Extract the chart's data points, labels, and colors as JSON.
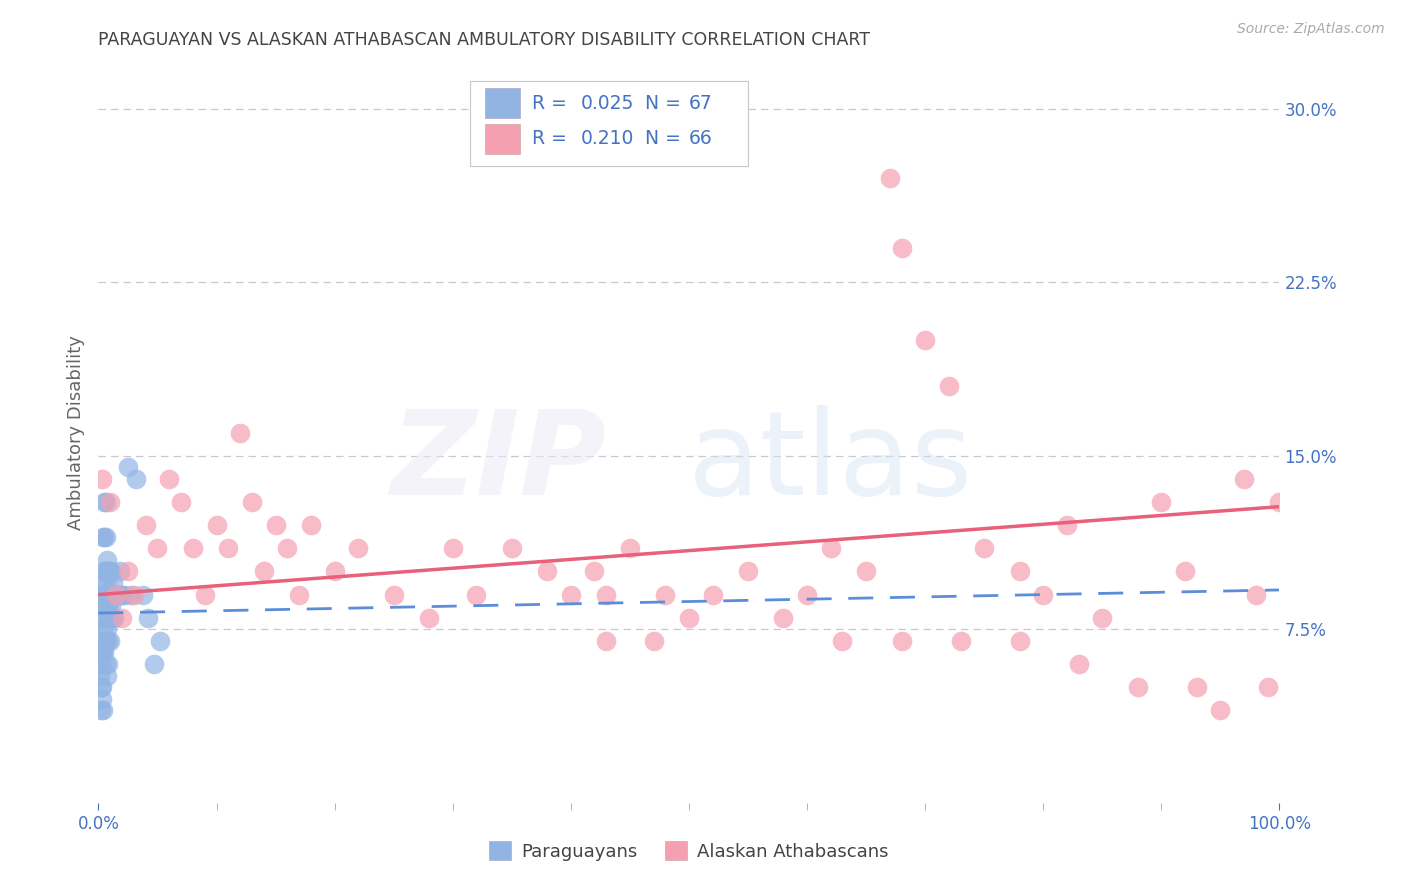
{
  "title": "PARAGUAYAN VS ALASKAN ATHABASCAN AMBULATORY DISABILITY CORRELATION CHART",
  "source": "Source: ZipAtlas.com",
  "ylabel": "Ambulatory Disability",
  "xlim": [
    0.0,
    1.0
  ],
  "ylim": [
    0.0,
    0.32
  ],
  "paraguayan_color": "#92b4e3",
  "alaskan_color": "#f4a0b0",
  "paraguayan_line_color": "#5b8dd9",
  "alaskan_line_color": "#e8607a",
  "paraguayan_label": "Paraguayans",
  "alaskan_label": "Alaskan Athabascans",
  "title_color": "#444444",
  "tick_color": "#4472c4",
  "grid_color": "#c8c8d0",
  "background_color": "#ffffff",
  "r1": "0.025",
  "n1": "67",
  "r2": "0.210",
  "n2": "66",
  "blue_trend_y0": 0.082,
  "blue_trend_y1": 0.092,
  "pink_trend_y0": 0.09,
  "pink_trend_y1": 0.128,
  "paraguayan_x": [
    0.001,
    0.001,
    0.002,
    0.002,
    0.002,
    0.003,
    0.003,
    0.003,
    0.003,
    0.004,
    0.004,
    0.004,
    0.004,
    0.004,
    0.005,
    0.005,
    0.005,
    0.005,
    0.005,
    0.005,
    0.006,
    0.006,
    0.006,
    0.006,
    0.006,
    0.007,
    0.007,
    0.007,
    0.007,
    0.008,
    0.008,
    0.008,
    0.008,
    0.009,
    0.009,
    0.009,
    0.01,
    0.01,
    0.01,
    0.01,
    0.011,
    0.011,
    0.012,
    0.012,
    0.013,
    0.013,
    0.014,
    0.015,
    0.016,
    0.017,
    0.018,
    0.019,
    0.02,
    0.022,
    0.025,
    0.028,
    0.032,
    0.038,
    0.042,
    0.047,
    0.052,
    0.005,
    0.006,
    0.007,
    0.003,
    0.004,
    0.008
  ],
  "paraguayan_y": [
    0.065,
    0.055,
    0.06,
    0.05,
    0.04,
    0.09,
    0.08,
    0.065,
    0.05,
    0.115,
    0.095,
    0.085,
    0.075,
    0.065,
    0.13,
    0.115,
    0.1,
    0.09,
    0.08,
    0.07,
    0.13,
    0.115,
    0.1,
    0.09,
    0.07,
    0.105,
    0.095,
    0.085,
    0.075,
    0.1,
    0.09,
    0.085,
    0.07,
    0.1,
    0.09,
    0.08,
    0.1,
    0.09,
    0.08,
    0.07,
    0.1,
    0.085,
    0.095,
    0.08,
    0.09,
    0.08,
    0.09,
    0.09,
    0.09,
    0.09,
    0.1,
    0.09,
    0.09,
    0.09,
    0.145,
    0.09,
    0.14,
    0.09,
    0.08,
    0.06,
    0.07,
    0.065,
    0.06,
    0.055,
    0.045,
    0.04,
    0.06
  ],
  "alaskan_x": [
    0.003,
    0.01,
    0.015,
    0.02,
    0.025,
    0.03,
    0.04,
    0.05,
    0.06,
    0.07,
    0.08,
    0.09,
    0.1,
    0.11,
    0.12,
    0.13,
    0.14,
    0.15,
    0.16,
    0.17,
    0.18,
    0.2,
    0.22,
    0.25,
    0.28,
    0.3,
    0.32,
    0.35,
    0.38,
    0.4,
    0.42,
    0.43,
    0.45,
    0.48,
    0.5,
    0.52,
    0.55,
    0.58,
    0.6,
    0.62,
    0.65,
    0.67,
    0.68,
    0.7,
    0.72,
    0.75,
    0.78,
    0.8,
    0.82,
    0.85,
    0.88,
    0.9,
    0.92,
    0.95,
    0.97,
    0.98,
    0.99,
    1.0,
    0.63,
    0.68,
    0.47,
    0.43,
    0.73,
    0.78,
    0.83,
    0.93
  ],
  "alaskan_y": [
    0.14,
    0.13,
    0.09,
    0.08,
    0.1,
    0.09,
    0.12,
    0.11,
    0.14,
    0.13,
    0.11,
    0.09,
    0.12,
    0.11,
    0.16,
    0.13,
    0.1,
    0.12,
    0.11,
    0.09,
    0.12,
    0.1,
    0.11,
    0.09,
    0.08,
    0.11,
    0.09,
    0.11,
    0.1,
    0.09,
    0.1,
    0.07,
    0.11,
    0.09,
    0.08,
    0.09,
    0.1,
    0.08,
    0.09,
    0.11,
    0.1,
    0.27,
    0.24,
    0.2,
    0.18,
    0.11,
    0.1,
    0.09,
    0.12,
    0.08,
    0.05,
    0.13,
    0.1,
    0.04,
    0.14,
    0.09,
    0.05,
    0.13,
    0.07,
    0.07,
    0.07,
    0.09,
    0.07,
    0.07,
    0.06,
    0.05
  ]
}
